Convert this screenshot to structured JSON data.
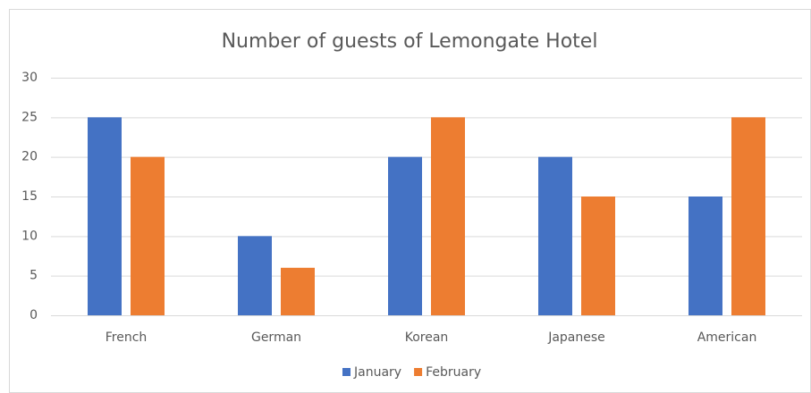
{
  "chart_data": {
    "type": "bar",
    "title": "Number of guests of Lemongate Hotel",
    "categories": [
      "French",
      "German",
      "Korean",
      "Japanese",
      "American"
    ],
    "series": [
      {
        "name": "January",
        "color": "#4472c4",
        "values": [
          25,
          10,
          20,
          20,
          15
        ]
      },
      {
        "name": "February",
        "color": "#ed7d31",
        "values": [
          20,
          6,
          25,
          15,
          25
        ]
      }
    ],
    "ylim": [
      0,
      30
    ],
    "yticks": [
      0,
      5,
      10,
      15,
      20,
      25,
      30
    ],
    "grid": true,
    "legend": "bottom"
  }
}
